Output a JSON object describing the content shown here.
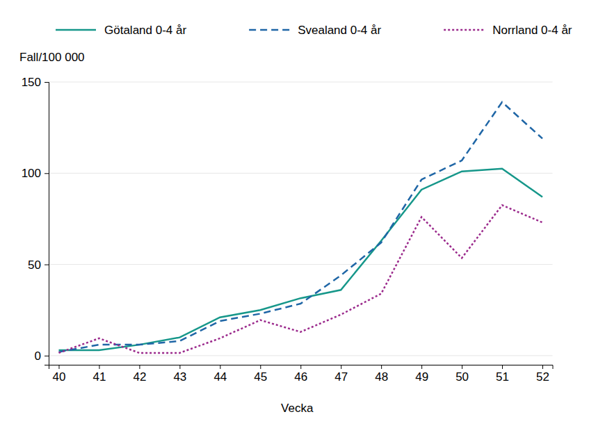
{
  "chart_data": {
    "type": "line",
    "y_label": "Fall/100 000",
    "x_label": "Vecka",
    "x": [
      40,
      41,
      42,
      43,
      44,
      45,
      46,
      47,
      48,
      49,
      50,
      51,
      52
    ],
    "xlim": [
      39.75,
      52.25
    ],
    "xticks": [
      40,
      41,
      42,
      43,
      44,
      45,
      46,
      47,
      48,
      49,
      50,
      51,
      52
    ],
    "ylim": [
      -5,
      150
    ],
    "yticks": [
      0,
      50,
      100,
      150
    ],
    "grid": true,
    "legend": "top",
    "series": [
      {
        "name": "Götaland 0-4 år",
        "color": "#16978a",
        "line_style": "solid",
        "values": [
          3,
          3,
          6,
          10,
          21,
          25,
          31.5,
          36,
          63,
          91,
          101,
          102.5,
          87
        ]
      },
      {
        "name": "Svealand 0-4 år",
        "color": "#1f66a6",
        "line_style": "dashed",
        "values": [
          2,
          6,
          6,
          8,
          19,
          23,
          28.5,
          44,
          62,
          96.5,
          107,
          139,
          119
        ]
      },
      {
        "name": "Norrland 0-4 år",
        "color": "#9b2a8c",
        "line_style": "dotted",
        "values": [
          1.5,
          9.5,
          1.5,
          1.5,
          9.5,
          19.5,
          13,
          22.5,
          34,
          76,
          53.5,
          82.5,
          73
        ]
      }
    ]
  }
}
